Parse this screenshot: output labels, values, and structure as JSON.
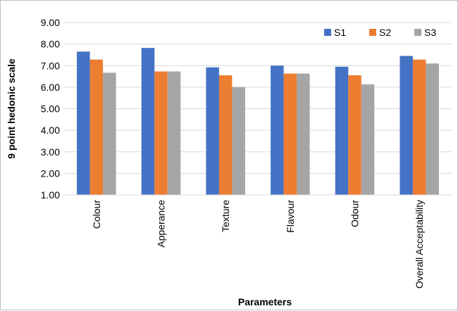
{
  "chart_data": {
    "type": "bar",
    "title": "",
    "xlabel": "Parameters",
    "ylabel": "9 point hedonic scale",
    "ylim": [
      1,
      9
    ],
    "yticks": [
      "1.00",
      "2.00",
      "3.00",
      "4.00",
      "5.00",
      "6.00",
      "7.00",
      "8.00",
      "9.00"
    ],
    "grid": true,
    "legend_position": "top-right",
    "categories": [
      "Colour",
      "Apperance",
      "Texture",
      "Flavour",
      "Odour",
      "Overall Acceptability"
    ],
    "series": [
      {
        "name": "S1",
        "color": "#4472c4",
        "values": [
          7.65,
          7.82,
          6.92,
          7.0,
          6.95,
          7.45
        ]
      },
      {
        "name": "S2",
        "color": "#ed7d31",
        "values": [
          7.28,
          6.73,
          6.55,
          6.63,
          6.55,
          7.28
        ]
      },
      {
        "name": "S3",
        "color": "#a5a5a5",
        "values": [
          6.67,
          6.73,
          6.0,
          6.63,
          6.13,
          7.1
        ]
      }
    ]
  }
}
